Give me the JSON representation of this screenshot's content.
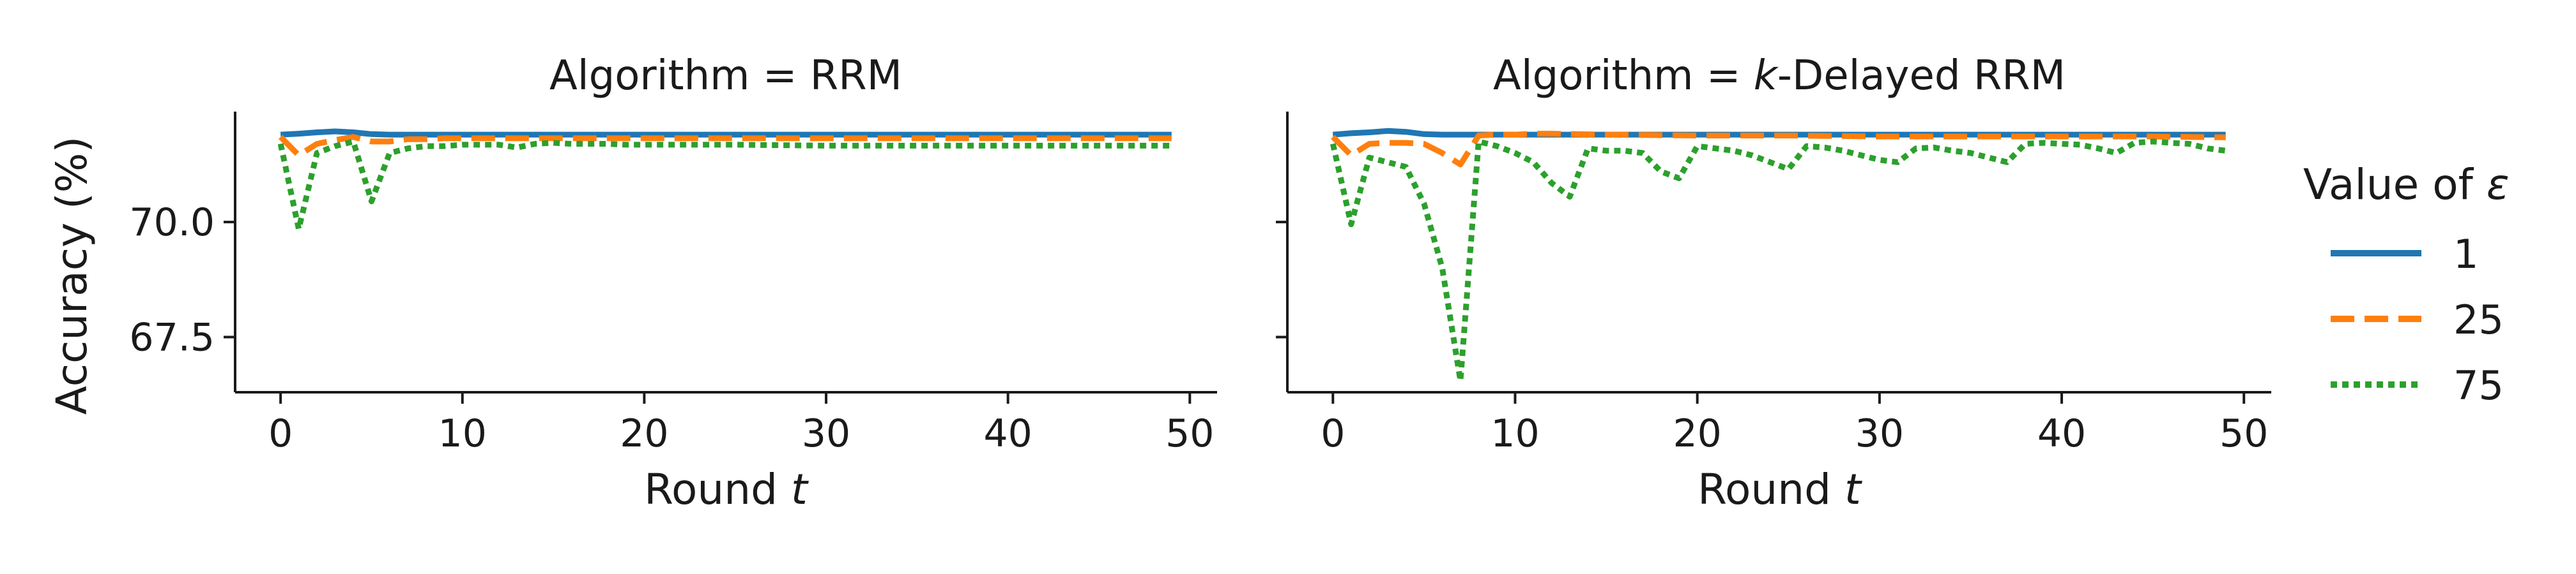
{
  "chart_data": [
    {
      "type": "line",
      "title": "Algorithm = RRM",
      "xlabel": "Round t",
      "ylabel": "Accuracy (%)",
      "xlim": [
        -2.5,
        51.5
      ],
      "ylim": [
        66.3,
        72.4
      ],
      "xticks": [
        0,
        10,
        20,
        30,
        40,
        50
      ],
      "yticks": [
        67.5,
        70.0
      ],
      "ytick_labels": [
        "67.5",
        "70.0"
      ],
      "grid": false,
      "series": [
        {
          "name": "1",
          "style": "solid",
          "points": [
            [
              0,
              71.9
            ],
            [
              1,
              71.92
            ],
            [
              2,
              71.95
            ],
            [
              3,
              71.97
            ],
            [
              4,
              71.95
            ],
            [
              5,
              71.91
            ],
            [
              6,
              71.9
            ],
            [
              7,
              71.9
            ],
            [
              10,
              71.9
            ],
            [
              20,
              71.9
            ],
            [
              30,
              71.9
            ],
            [
              40,
              71.9
            ],
            [
              49,
              71.9
            ]
          ]
        },
        {
          "name": "25",
          "style": "dashed",
          "points": [
            [
              0,
              71.85
            ],
            [
              1,
              71.45
            ],
            [
              2,
              71.7
            ],
            [
              3,
              71.78
            ],
            [
              4,
              71.85
            ],
            [
              5,
              71.75
            ],
            [
              6,
              71.75
            ],
            [
              7,
              71.8
            ],
            [
              8,
              71.8
            ],
            [
              9,
              71.82
            ],
            [
              10,
              71.82
            ],
            [
              15,
              71.82
            ],
            [
              20,
              71.82
            ],
            [
              30,
              71.82
            ],
            [
              40,
              71.82
            ],
            [
              49,
              71.82
            ]
          ]
        },
        {
          "name": "75",
          "style": "dotted",
          "points": [
            [
              0,
              71.7
            ],
            [
              1,
              69.85
            ],
            [
              2,
              71.5
            ],
            [
              3,
              71.65
            ],
            [
              4,
              71.75
            ],
            [
              5,
              70.45
            ],
            [
              6,
              71.5
            ],
            [
              7,
              71.6
            ],
            [
              8,
              71.65
            ],
            [
              9,
              71.65
            ],
            [
              10,
              71.68
            ],
            [
              11,
              71.68
            ],
            [
              12,
              71.68
            ],
            [
              13,
              71.62
            ],
            [
              14,
              71.7
            ],
            [
              15,
              71.72
            ],
            [
              16,
              71.7
            ],
            [
              17,
              71.7
            ],
            [
              18,
              71.7
            ],
            [
              19,
              71.68
            ],
            [
              20,
              71.68
            ],
            [
              25,
              71.68
            ],
            [
              30,
              71.66
            ],
            [
              35,
              71.66
            ],
            [
              40,
              71.66
            ],
            [
              45,
              71.66
            ],
            [
              49,
              71.66
            ]
          ]
        }
      ]
    },
    {
      "type": "line",
      "title_prefix": "Algorithm = ",
      "title_italic": "k",
      "title_suffix": "-Delayed RRM",
      "xlabel": "Round t",
      "xlim": [
        -2.5,
        51.5
      ],
      "ylim": [
        66.3,
        72.4
      ],
      "xticks": [
        0,
        10,
        20,
        30,
        40,
        50
      ],
      "yticks": [
        67.5,
        70.0
      ],
      "grid": false,
      "series": [
        {
          "name": "1",
          "style": "solid",
          "points": [
            [
              0,
              71.9
            ],
            [
              1,
              71.93
            ],
            [
              2,
              71.95
            ],
            [
              3,
              71.98
            ],
            [
              4,
              71.96
            ],
            [
              5,
              71.91
            ],
            [
              6,
              71.9
            ],
            [
              7,
              71.9
            ],
            [
              10,
              71.9
            ],
            [
              20,
              71.9
            ],
            [
              30,
              71.9
            ],
            [
              40,
              71.9
            ],
            [
              49,
              71.9
            ]
          ]
        },
        {
          "name": "25",
          "style": "dashed",
          "points": [
            [
              0,
              71.85
            ],
            [
              1,
              71.45
            ],
            [
              2,
              71.7
            ],
            [
              3,
              71.72
            ],
            [
              4,
              71.72
            ],
            [
              5,
              71.7
            ],
            [
              6,
              71.5
            ],
            [
              7,
              71.25
            ],
            [
              8,
              71.88
            ],
            [
              9,
              71.9
            ],
            [
              10,
              71.9
            ],
            [
              11,
              71.92
            ],
            [
              12,
              71.92
            ],
            [
              15,
              71.9
            ],
            [
              20,
              71.88
            ],
            [
              25,
              71.88
            ],
            [
              30,
              71.86
            ],
            [
              35,
              71.86
            ],
            [
              40,
              71.86
            ],
            [
              45,
              71.86
            ],
            [
              49,
              71.84
            ]
          ]
        },
        {
          "name": "75",
          "style": "dotted",
          "points": [
            [
              0,
              71.7
            ],
            [
              1,
              69.95
            ],
            [
              2,
              71.4
            ],
            [
              3,
              71.3
            ],
            [
              4,
              71.2
            ],
            [
              5,
              70.4
            ],
            [
              6,
              69.0
            ],
            [
              7,
              66.55
            ],
            [
              8,
              71.75
            ],
            [
              9,
              71.65
            ],
            [
              10,
              71.5
            ],
            [
              11,
              71.3
            ],
            [
              12,
              70.85
            ],
            [
              13,
              70.55
            ],
            [
              14,
              71.6
            ],
            [
              15,
              71.55
            ],
            [
              16,
              71.55
            ],
            [
              17,
              71.5
            ],
            [
              18,
              71.1
            ],
            [
              19,
              70.95
            ],
            [
              20,
              71.65
            ],
            [
              21,
              71.6
            ],
            [
              22,
              71.55
            ],
            [
              23,
              71.45
            ],
            [
              24,
              71.3
            ],
            [
              25,
              71.15
            ],
            [
              26,
              71.65
            ],
            [
              27,
              71.62
            ],
            [
              28,
              71.55
            ],
            [
              29,
              71.45
            ],
            [
              30,
              71.35
            ],
            [
              31,
              71.3
            ],
            [
              32,
              71.6
            ],
            [
              33,
              71.62
            ],
            [
              34,
              71.55
            ],
            [
              35,
              71.5
            ],
            [
              36,
              71.4
            ],
            [
              37,
              71.3
            ],
            [
              38,
              71.7
            ],
            [
              39,
              71.72
            ],
            [
              40,
              71.7
            ],
            [
              41,
              71.68
            ],
            [
              42,
              71.6
            ],
            [
              43,
              71.5
            ],
            [
              44,
              71.72
            ],
            [
              45,
              71.75
            ],
            [
              46,
              71.72
            ],
            [
              47,
              71.7
            ],
            [
              48,
              71.6
            ],
            [
              49,
              71.55
            ]
          ]
        }
      ]
    }
  ],
  "legend": {
    "title_prefix": "Value of ",
    "title_symbol": "ε",
    "placement": "right",
    "entries": [
      "1",
      "25",
      "75"
    ]
  },
  "colors": {
    "1": "#1f77b4",
    "25": "#ff7f0e",
    "75": "#2ca02c",
    "axis": "#1a1a1a"
  }
}
